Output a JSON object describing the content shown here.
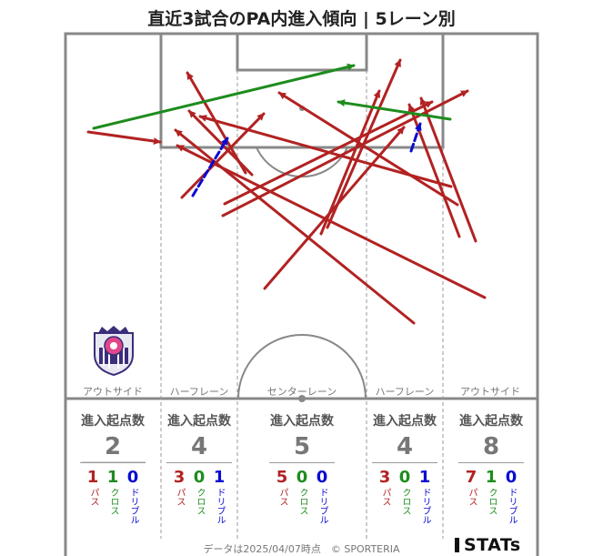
{
  "title": "直近3試合のPA内進入傾向 | 5レーン別",
  "lanes": [
    {
      "label": "アウトサイド",
      "header": "進入起点数",
      "total": "2",
      "pass": "1",
      "cross": "1",
      "dribble": "0"
    },
    {
      "label": "ハーフレーン",
      "header": "進入起点数",
      "total": "4",
      "pass": "3",
      "cross": "0",
      "dribble": "1"
    },
    {
      "label": "センターレーン",
      "header": "進入起点数",
      "total": "5",
      "pass": "5",
      "cross": "0",
      "dribble": "0"
    },
    {
      "label": "ハーフレーン",
      "header": "進入起点数",
      "total": "4",
      "pass": "3",
      "cross": "0",
      "dribble": "1"
    },
    {
      "label": "アウトサイド",
      "header": "進入起点数",
      "total": "8",
      "pass": "7",
      "cross": "1",
      "dribble": "0"
    }
  ],
  "breakdown_labels": {
    "pass": "パス",
    "cross": "クロス",
    "dribble": "ドリブル"
  },
  "colors": {
    "pass": "#b22222",
    "cross": "#1e8c1e",
    "dribble": "#0a0ad2",
    "pitch_line": "#888888"
  },
  "footer": "データは2025/04/07時点　© SPORTERIA",
  "logo": "STATs",
  "crest_icon": "club-crest-icon"
}
